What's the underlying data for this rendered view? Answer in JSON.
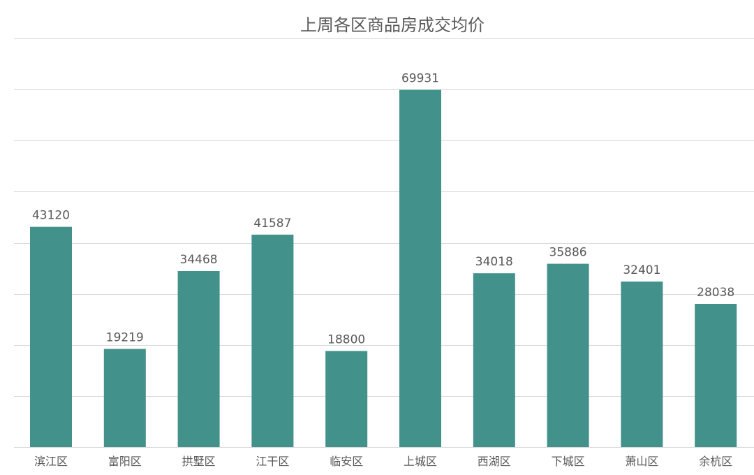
{
  "chart_data": {
    "type": "bar",
    "title": "上周各区商品房成交均价",
    "categories": [
      "滨江区",
      "富阳区",
      "拱墅区",
      "江干区",
      "临安区",
      "上城区",
      "西湖区",
      "下城区",
      "萧山区",
      "余杭区"
    ],
    "values": [
      43120,
      19219,
      34468,
      41587,
      18800,
      69931,
      34018,
      35886,
      32401,
      28038
    ],
    "data_labels": [
      "43120",
      "19219",
      "34468",
      "41587",
      "18800",
      "69931",
      "34018",
      "35886",
      "32401",
      "28038"
    ],
    "ylim": [
      0,
      80000
    ],
    "grid": true,
    "legend": "none",
    "bar_color": "#42918a",
    "xlabel": "",
    "ylabel": ""
  }
}
